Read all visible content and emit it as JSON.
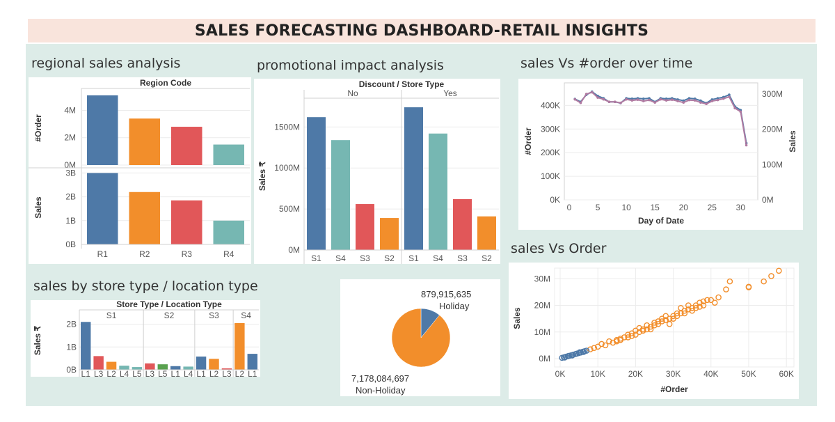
{
  "dashboard_title": "SALES FORECASTING DASHBOARD-RETAIL INSIGHTS",
  "panels": {
    "regional": "regional sales analysis",
    "promo": "promotional impact analysis",
    "time": "sales Vs #order over time",
    "store": "sales by store type / location type",
    "scatter": "sales Vs Order"
  },
  "colors": {
    "blue": "#4e79a7",
    "orange": "#f28e2b",
    "red": "#e15759",
    "teal": "#76b7b2",
    "green": "#59a14f",
    "purple": "#b07aa1"
  },
  "chart_data": [
    {
      "id": "regional",
      "type": "bar",
      "header": "Region Code",
      "categories": [
        "R1",
        "R2",
        "R3",
        "R4"
      ],
      "colors": [
        "blue",
        "orange",
        "red",
        "teal"
      ],
      "series": [
        {
          "name": "#Order",
          "values": [
            5.1,
            3.4,
            2.8,
            1.5
          ],
          "unit": "M",
          "ylim": [
            0,
            5.4
          ],
          "ticks": [
            {
              "v": 0,
              "label": "0M"
            },
            {
              "v": 2,
              "label": "2M"
            },
            {
              "v": 4,
              "label": "4M"
            }
          ]
        },
        {
          "name": "Sales",
          "values": [
            3.0,
            2.2,
            1.85,
            1.0
          ],
          "unit": "B",
          "ylim": [
            0,
            3.1
          ],
          "ticks": [
            {
              "v": 0,
              "label": "0B"
            },
            {
              "v": 1,
              "label": "1B"
            },
            {
              "v": 2,
              "label": "2B"
            },
            {
              "v": 3,
              "label": "3B"
            }
          ]
        }
      ]
    },
    {
      "id": "promo",
      "type": "bar",
      "header": "Discount  /  Store Type",
      "ylabel": "Sales ₹",
      "groups": [
        {
          "name": "No",
          "categories": [
            "S1",
            "S4",
            "S3",
            "S2"
          ],
          "values": [
            1620,
            1340,
            560,
            390
          ]
        },
        {
          "name": "Yes",
          "categories": [
            "S1",
            "S4",
            "S3",
            "S2"
          ],
          "values": [
            1740,
            1420,
            620,
            410
          ]
        }
      ],
      "colors": [
        "blue",
        "teal",
        "red",
        "orange"
      ],
      "ylim": [
        0,
        1800
      ],
      "ticks": [
        {
          "v": 0,
          "label": "0M"
        },
        {
          "v": 500,
          "label": "500M"
        },
        {
          "v": 1000,
          "label": "1000M"
        },
        {
          "v": 1500,
          "label": "1500M"
        }
      ]
    },
    {
      "id": "time",
      "type": "line",
      "xlabel": "Day of Date",
      "ylabel_left": "#Order",
      "ylabel_right": "Sales",
      "x": [
        1,
        2,
        3,
        4,
        5,
        6,
        7,
        8,
        9,
        10,
        11,
        12,
        13,
        14,
        15,
        16,
        17,
        18,
        19,
        20,
        21,
        22,
        23,
        24,
        25,
        26,
        27,
        28,
        29,
        30,
        31
      ],
      "series": [
        {
          "name": "#Order",
          "color": "blue",
          "values": [
            427,
            415,
            445,
            458,
            440,
            430,
            415,
            415,
            410,
            430,
            428,
            430,
            428,
            430,
            415,
            430,
            428,
            430,
            425,
            420,
            430,
            428,
            420,
            410,
            425,
            430,
            435,
            445,
            395,
            380,
            240
          ]
        },
        {
          "name": "Sales",
          "color": "purple",
          "values": [
            285,
            275,
            300,
            305,
            290,
            285,
            278,
            278,
            275,
            285,
            282,
            284,
            280,
            283,
            276,
            285,
            282,
            284,
            280,
            276,
            283,
            282,
            276,
            272,
            280,
            283,
            287,
            292,
            260,
            250,
            155
          ]
        }
      ],
      "xticks": [
        0,
        5,
        10,
        15,
        20,
        25,
        30
      ],
      "left_ticks": [
        {
          "v": 0,
          "label": "0K"
        },
        {
          "v": 100,
          "label": "100K"
        },
        {
          "v": 200,
          "label": "200K"
        },
        {
          "v": 300,
          "label": "300K"
        },
        {
          "v": 400,
          "label": "400K"
        }
      ],
      "right_ticks": [
        {
          "v": 0,
          "label": "0M"
        },
        {
          "v": 100,
          "label": "100M"
        },
        {
          "v": 200,
          "label": "200M"
        },
        {
          "v": 300,
          "label": "300M"
        }
      ],
      "left_ylim": [
        0,
        460
      ],
      "right_ylim": [
        0,
        308
      ]
    },
    {
      "id": "store",
      "type": "bar",
      "header": "Store Type  /  Location Type",
      "ylabel": "Sales ₹",
      "groups": [
        {
          "name": "S1",
          "categories": [
            "L1",
            "L3",
            "L2",
            "L4",
            "L5"
          ],
          "values": [
            2.1,
            0.6,
            0.35,
            0.18,
            0.12
          ],
          "colors": [
            "blue",
            "red",
            "orange",
            "teal",
            "teal"
          ]
        },
        {
          "name": "S2",
          "categories": [
            "L3",
            "L5",
            "L1",
            "L4"
          ],
          "values": [
            0.28,
            0.24,
            0.16,
            0.14
          ],
          "colors": [
            "red",
            "green",
            "blue",
            "teal"
          ]
        },
        {
          "name": "S3",
          "categories": [
            "L1",
            "L2",
            "L3"
          ],
          "values": [
            0.58,
            0.48,
            0.06
          ],
          "colors": [
            "blue",
            "orange",
            "red"
          ]
        },
        {
          "name": "S4",
          "categories": [
            "L2",
            "L1"
          ],
          "values": [
            2.05,
            0.7
          ],
          "colors": [
            "orange",
            "blue"
          ]
        }
      ],
      "ylim": [
        0,
        2.2
      ],
      "ticks": [
        {
          "v": 0,
          "label": "0B"
        },
        {
          "v": 1,
          "label": "1B"
        },
        {
          "v": 2,
          "label": "2B"
        }
      ]
    },
    {
      "id": "holiday",
      "type": "pie",
      "slices": [
        {
          "name": "Holiday",
          "value": 879915635,
          "value_label": "879,915,635",
          "color": "blue"
        },
        {
          "name": "Non-Holiday",
          "value": 7178084697,
          "value_label": "7,178,084,697",
          "color": "orange"
        }
      ]
    },
    {
      "id": "scatter",
      "type": "scatter",
      "xlabel": "#Order",
      "ylabel": "Sales",
      "xlim": [
        0,
        62
      ],
      "ylim": [
        0,
        34
      ],
      "xticks": [
        {
          "v": 0,
          "label": "0K"
        },
        {
          "v": 10,
          "label": "10K"
        },
        {
          "v": 20,
          "label": "20K"
        },
        {
          "v": 30,
          "label": "30K"
        },
        {
          "v": 40,
          "label": "40K"
        },
        {
          "v": 50,
          "label": "50K"
        },
        {
          "v": 60,
          "label": "60K"
        }
      ],
      "yticks": [
        {
          "v": 0,
          "label": "0M"
        },
        {
          "v": 10,
          "label": "10M"
        },
        {
          "v": 20,
          "label": "20M"
        },
        {
          "v": 30,
          "label": "30M"
        }
      ],
      "series": [
        {
          "name": "orange",
          "color": "orange",
          "points": [
            [
              8,
              3.5
            ],
            [
              10,
              4.5
            ],
            [
              12,
              5
            ],
            [
              14,
              6
            ],
            [
              15,
              6.5
            ],
            [
              16,
              7
            ],
            [
              18,
              8
            ],
            [
              19,
              8.5
            ],
            [
              20,
              9
            ],
            [
              21,
              10
            ],
            [
              22,
              10.5
            ],
            [
              23,
              11
            ],
            [
              24,
              12
            ],
            [
              25,
              12.5
            ],
            [
              26,
              13
            ],
            [
              27,
              14
            ],
            [
              28,
              14.5
            ],
            [
              29,
              15
            ],
            [
              30,
              16
            ],
            [
              31,
              17
            ],
            [
              32,
              17
            ],
            [
              33,
              18
            ],
            [
              34,
              18.5
            ],
            [
              35,
              19
            ],
            [
              36,
              20
            ],
            [
              37,
              21
            ],
            [
              38,
              21.5
            ],
            [
              39,
              22
            ],
            [
              40,
              22
            ],
            [
              41,
              21
            ],
            [
              42,
              23
            ],
            [
              44,
              26
            ],
            [
              45,
              29
            ],
            [
              50,
              27
            ],
            [
              50,
              26.8
            ],
            [
              56,
              31
            ],
            [
              54,
              29
            ],
            [
              58,
              33
            ],
            [
              13,
              6.5
            ],
            [
              17,
              8
            ],
            [
              22,
              11
            ],
            [
              26,
              14
            ],
            [
              30,
              15
            ],
            [
              33,
              17
            ],
            [
              36,
              19
            ],
            [
              28,
              16
            ],
            [
              25,
              13.5
            ],
            [
              20,
              10.5
            ],
            [
              18,
              9
            ],
            [
              15,
              7
            ],
            [
              32,
              19
            ],
            [
              34,
              20
            ],
            [
              38,
              20
            ],
            [
              24,
              11
            ],
            [
              27,
              15
            ],
            [
              31,
              16
            ],
            [
              29,
              13
            ],
            [
              23,
              12.5
            ],
            [
              19,
              9.5
            ],
            [
              16,
              7.5
            ],
            [
              35,
              18
            ],
            [
              37,
              19.5
            ],
            [
              21,
              11.5
            ],
            [
              11,
              5.5
            ],
            [
              9,
              4
            ]
          ]
        },
        {
          "name": "blue",
          "color": "blue",
          "points": [
            [
              0.5,
              0.3
            ],
            [
              1,
              0.5
            ],
            [
              1.5,
              0.7
            ],
            [
              2,
              0.9
            ],
            [
              2.5,
              1.1
            ],
            [
              3,
              1.3
            ],
            [
              3.5,
              1.5
            ],
            [
              4,
              1.7
            ],
            [
              4.5,
              1.9
            ],
            [
              5,
              2.1
            ],
            [
              5.5,
              2.3
            ],
            [
              6,
              2.6
            ],
            [
              6.5,
              2.8
            ],
            [
              7,
              3.0
            ],
            [
              1.2,
              0.4
            ],
            [
              2.2,
              1.0
            ],
            [
              3.2,
              1.2
            ],
            [
              4.2,
              1.8
            ],
            [
              5.2,
              2.4
            ],
            [
              6.2,
              2.5
            ]
          ]
        }
      ]
    }
  ]
}
